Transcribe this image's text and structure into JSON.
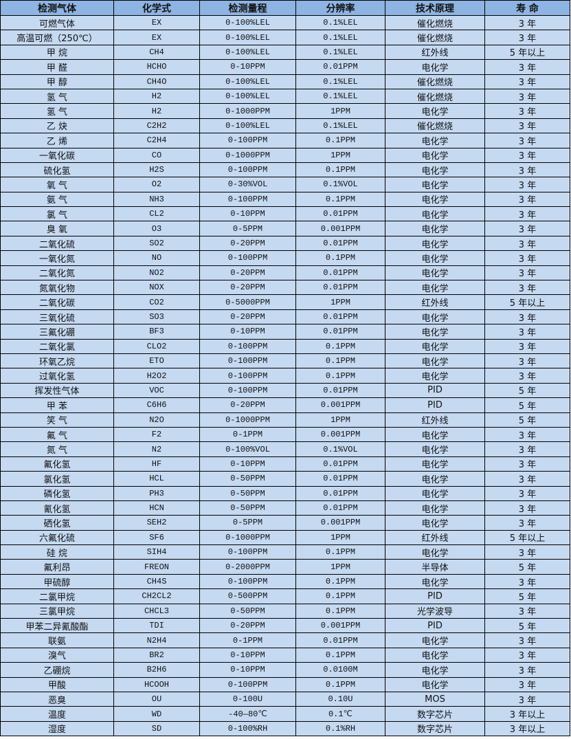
{
  "colors": {
    "header_bg": "#8DB4E2",
    "row_bg": "#C5D9F1",
    "border": "#000000"
  },
  "columns": [
    "检测气体",
    "化学式",
    "检测量程",
    "分辨率",
    "技术原理",
    "寿 命"
  ],
  "rows": [
    [
      "可燃气体",
      "EX",
      "0-100%LEL",
      "0.1%LEL",
      "催化燃烧",
      "3 年"
    ],
    [
      "高温可燃（250℃）",
      "EX",
      "0-100%LEL",
      "0.1%LEL",
      "催化燃烧",
      "3 年"
    ],
    [
      "甲 烷",
      "CH4",
      "0-100%LEL",
      "0.1%LEL",
      "红外线",
      "5 年以上"
    ],
    [
      "甲 醛",
      "HCHO",
      "0-10PPM",
      "0.01PPM",
      "电化学",
      "3 年"
    ],
    [
      "甲 醇",
      "CH4O",
      "0-100%LEL",
      "0.1%LEL",
      "催化燃烧",
      "3 年"
    ],
    [
      "氢 气",
      "H2",
      "0-100%LEL",
      "0.1%LEL",
      "催化燃烧",
      "3 年"
    ],
    [
      "氢 气",
      "H2",
      "0-1000PPM",
      "1PPM",
      "电化学",
      "3 年"
    ],
    [
      "乙 炔",
      "C2H2",
      "0-100%LEL",
      "0.1%LEL",
      "催化燃烧",
      "3 年"
    ],
    [
      "乙 烯",
      "C2H4",
      "0-100PPM",
      "0.1PPM",
      "电化学",
      "3 年"
    ],
    [
      "一氧化碳",
      "CO",
      "0-1000PPM",
      "1PPM",
      "电化学",
      "3 年"
    ],
    [
      "硫化氢",
      "H2S",
      "0-100PPM",
      "0.1PPM",
      "电化学",
      "3 年"
    ],
    [
      "氧 气",
      "O2",
      "0-30%VOL",
      "0.1%VOL",
      "电化学",
      "3 年"
    ],
    [
      "氨 气",
      "NH3",
      "0-100PPM",
      "0.1PPM",
      "电化学",
      "3 年"
    ],
    [
      "氯 气",
      "CL2",
      "0-10PPM",
      "0.01PPM",
      "电化学",
      "3 年"
    ],
    [
      "臭 氧",
      "O3",
      "0-5PPM",
      "0.001PPM",
      "电化学",
      "3 年"
    ],
    [
      "二氧化硫",
      "SO2",
      "0-20PPM",
      "0.01PPM",
      "电化学",
      "3 年"
    ],
    [
      "一氧化氮",
      "NO",
      "0-100PPM",
      "0.1PPM",
      "电化学",
      "3 年"
    ],
    [
      "二氧化氮",
      "NO2",
      "0-20PPM",
      "0.01PPM",
      "电化学",
      "3 年"
    ],
    [
      "氮氧化物",
      "NOX",
      "0-20PPM",
      "0.01PPM",
      "电化学",
      "3 年"
    ],
    [
      "二氧化碳",
      "CO2",
      "0-5000PPM",
      "1PPM",
      "红外线",
      "5 年以上"
    ],
    [
      "三氧化硫",
      "SO3",
      "0-20PPM",
      "0.01PPM",
      "电化学",
      "3 年"
    ],
    [
      "三氟化硼",
      "BF3",
      "0-10PPM",
      "0.01PPM",
      "电化学",
      "3 年"
    ],
    [
      "二氧化氯",
      "CLO2",
      "0-100PPM",
      "0.1PPM",
      "电化学",
      "3 年"
    ],
    [
      "环氧乙烷",
      "ETO",
      "0-100PPM",
      "0.1PPM",
      "电化学",
      "3 年"
    ],
    [
      "过氧化氢",
      "H2O2",
      "0-100PPM",
      "0.1PPM",
      "电化学",
      "3 年"
    ],
    [
      "挥发性气体",
      "VOC",
      "0-100PPM",
      "0.01PPM",
      "PID",
      "5 年"
    ],
    [
      "甲 苯",
      "C6H6",
      "0-20PPM",
      "0.001PPM",
      "PID",
      "5 年"
    ],
    [
      "笑 气",
      "N2O",
      "0-1000PPM",
      "1PPM",
      "红外线",
      "5 年"
    ],
    [
      "氟 气",
      "F2",
      "0-1PPM",
      "0.001PPM",
      "电化学",
      "3 年"
    ],
    [
      "氮 气",
      "N2",
      "0-100%VOL",
      "0.1%VOL",
      "电化学",
      "3 年"
    ],
    [
      "氟化氢",
      "HF",
      "0-10PPM",
      "0.01PPM",
      "电化学",
      "3 年"
    ],
    [
      "氯化氢",
      "HCL",
      "0-50PPM",
      "0.01PPM",
      "电化学",
      "3 年"
    ],
    [
      "磷化氢",
      "PH3",
      "0-50PPM",
      "0.01PPM",
      "电化学",
      "3 年"
    ],
    [
      "氰化氢",
      "HCN",
      "0-50PPM",
      "0.01PPM",
      "电化学",
      "3 年"
    ],
    [
      "硒化氢",
      "SEH2",
      "0-5PPM",
      "0.001PPM",
      "电化学",
      "3 年"
    ],
    [
      "六氟化硫",
      "SF6",
      "0-1000PPM",
      "1PPM",
      "红外线",
      "5 年以上"
    ],
    [
      "硅 烷",
      "SIH4",
      "0-100PPM",
      "0.1PPM",
      "电化学",
      "3 年"
    ],
    [
      "氟利昂",
      "FREON",
      "0-2000PPM",
      "1PPM",
      "半导体",
      "5 年"
    ],
    [
      "甲硫醇",
      "CH4S",
      "0-100PPM",
      "0.1PPM",
      "电化学",
      "3 年"
    ],
    [
      "二氯甲烷",
      "CH2CL2",
      "0-500PPM",
      "0.1PPM",
      "PID",
      "5 年"
    ],
    [
      "三氯甲烷",
      "CHCL3",
      "0-50PPM",
      "0.1PPM",
      "光学波导",
      "3 年"
    ],
    [
      "甲苯二异氰酸酯",
      "TDI",
      "0-20PPM",
      "0.001PPM",
      "PID",
      "5 年"
    ],
    [
      "联氨",
      "N2H4",
      "0-1PPM",
      "0.01PPM",
      "电化学",
      "3 年"
    ],
    [
      "溴气",
      "BR2",
      "0-10PPM",
      "0.1PPM",
      "电化学",
      "3 年"
    ],
    [
      "乙硼烷",
      "B2H6",
      "0-10PPM",
      "0.0100M",
      "电化学",
      "3 年"
    ],
    [
      "甲酸",
      "HCOOH",
      "0-100PPM",
      "0.1PPM",
      "电化学",
      "3 年"
    ],
    [
      "恶臭",
      "OU",
      "0-100U",
      "0.10U",
      "MOS",
      "3 年"
    ],
    [
      "温度",
      "WD",
      "-40—80℃",
      "0.1℃",
      "数字芯片",
      "3 年以上"
    ],
    [
      "湿度",
      "SD",
      "0-100%RH",
      "0.1%RH",
      "数字芯片",
      "3 年以上"
    ]
  ]
}
